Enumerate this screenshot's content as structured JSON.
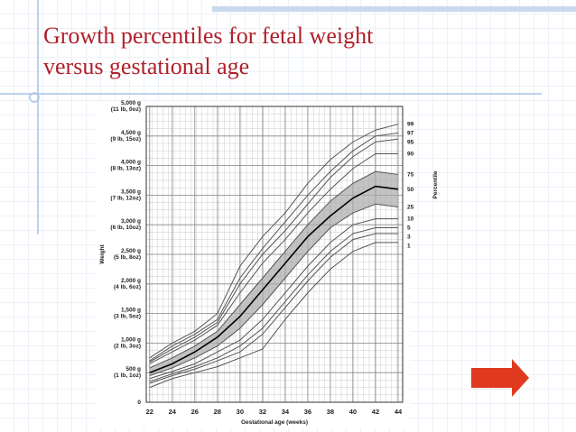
{
  "slide_title": [
    "Growth percentiles for fetal weight",
    "versus gestational age"
  ],
  "chart_data": {
    "type": "line",
    "y_label": "Weight",
    "x_label": "Gestational age (weeks)",
    "legend_title": "Percentile",
    "x": [
      22,
      24,
      26,
      28,
      30,
      32,
      34,
      36,
      38,
      40,
      42,
      44
    ],
    "xlim": [
      21.7,
      44.4
    ],
    "xticks": [
      22,
      24,
      26,
      28,
      30,
      32,
      34,
      36,
      38,
      40,
      42,
      44
    ],
    "ylim": [
      0,
      5000
    ],
    "yticks": [
      0,
      {
        "value": 500,
        "label": "500 g",
        "note": "(1 lb, 1oz)"
      },
      {
        "value": 1000,
        "label": "1,000 g",
        "note": "(2 lb, 3oz)"
      },
      {
        "value": 1500,
        "label": "1,500 g",
        "note": "(3 lb, 5oz)"
      },
      {
        "value": 2000,
        "label": "2,000 g",
        "note": "(4 lb, 6oz)"
      },
      {
        "value": 2500,
        "label": "2,500 g",
        "note": "(5 lb, 8oz)"
      },
      {
        "value": 3000,
        "label": "3,000 g",
        "note": "(6 lb, 10oz)"
      },
      {
        "value": 3500,
        "label": "3,500 g",
        "note": "(7 lb, 12oz)"
      },
      {
        "value": 4000,
        "label": "4,000 g",
        "note": "(8 lb, 13oz)"
      },
      {
        "value": 4500,
        "label": "4,500 g",
        "note": "(9 lb, 15oz)"
      },
      {
        "value": 5000,
        "label": "5,000 g",
        "note": "(11 lb, 0oz)"
      }
    ],
    "grid": true,
    "band_color": "#a9a9a9",
    "series": [
      {
        "name": "99",
        "color": "#555555",
        "values": [
          750,
          1000,
          1200,
          1500,
          2300,
          2800,
          3200,
          3700,
          4100,
          4400,
          4600,
          4700
        ]
      },
      {
        "name": "97",
        "color": "#555555",
        "values": [
          700,
          950,
          1150,
          1400,
          2100,
          2600,
          3050,
          3500,
          3900,
          4250,
          4500,
          4550
        ]
      },
      {
        "name": "95",
        "color": "#555555",
        "values": [
          680,
          900,
          1100,
          1350,
          2000,
          2500,
          2900,
          3350,
          3800,
          4150,
          4400,
          4450
        ]
      },
      {
        "name": "90",
        "color": "#555555",
        "values": [
          650,
          850,
          1050,
          1300,
          1850,
          2350,
          2750,
          3200,
          3600,
          3950,
          4200,
          4200
        ]
      },
      {
        "name": "75",
        "color": "#555555",
        "values": [
          580,
          750,
          950,
          1200,
          1650,
          2100,
          2550,
          3000,
          3400,
          3700,
          3900,
          3850
        ]
      },
      {
        "name": "50",
        "color": "#000000",
        "values": [
          500,
          650,
          850,
          1100,
          1450,
          1900,
          2350,
          2800,
          3150,
          3450,
          3650,
          3600
        ]
      },
      {
        "name": "25",
        "color": "#555555",
        "values": [
          450,
          580,
          750,
          950,
          1250,
          1650,
          2100,
          2550,
          2950,
          3200,
          3350,
          3300
        ]
      },
      {
        "name": "10",
        "color": "#555555",
        "values": [
          400,
          520,
          650,
          850,
          1050,
          1400,
          1850,
          2300,
          2700,
          3000,
          3100,
          3100
        ]
      },
      {
        "name": "5",
        "color": "#555555",
        "values": [
          350,
          480,
          600,
          750,
          950,
          1250,
          1700,
          2150,
          2550,
          2850,
          2950,
          2950
        ]
      },
      {
        "name": "3",
        "color": "#555555",
        "values": [
          320,
          450,
          560,
          700,
          850,
          1150,
          1600,
          2050,
          2450,
          2750,
          2850,
          2850
        ]
      },
      {
        "name": "1",
        "color": "#555555",
        "values": [
          250,
          400,
          500,
          600,
          750,
          900,
          1400,
          1850,
          2250,
          2550,
          2700,
          2700
        ]
      }
    ]
  }
}
